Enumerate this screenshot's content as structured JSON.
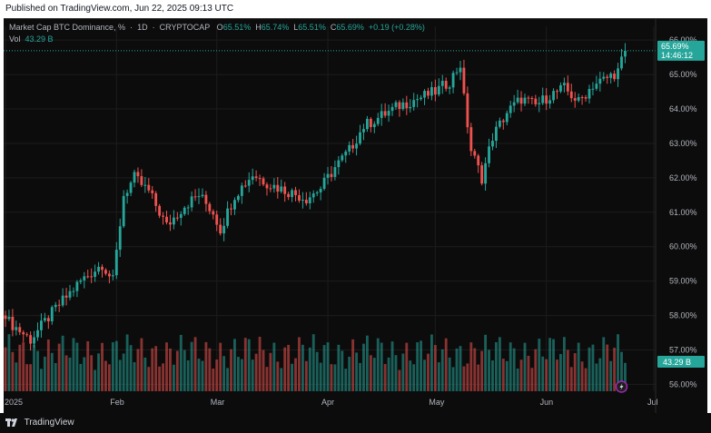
{
  "header": {
    "published_text": "Published on TradingView.com, Jun 22, 2025 09:13 UTC"
  },
  "legend": {
    "title": "Market Cap BTC Dominance, %",
    "interval": "1D",
    "source": "CRYPTOCAP",
    "open_label": "O",
    "open": "65.51%",
    "high_label": "H",
    "high": "65.74%",
    "low_label": "L",
    "low": "65.51%",
    "close_label": "C",
    "close": "65.69%",
    "change": "+0.19 (+0.28%)",
    "vol_label": "Vol",
    "vol": "43.29 B"
  },
  "price_badge": {
    "value": "65.69%",
    "countdown": "14:46:12",
    "color": "#26a69a"
  },
  "volume_badge": {
    "value": "43.29 B",
    "color": "#26a69a"
  },
  "footer": {
    "brand": "TradingView",
    "logo_icon": "tradingview-logo-icon"
  },
  "colors": {
    "up": "#26a69a",
    "down": "#ef5350",
    "background": "#0c0c0c",
    "grid": "#1c1c1c"
  },
  "chart_data": {
    "type": "candlestick",
    "title": "Market Cap BTC Dominance, % · 1D · CRYPTOCAP",
    "y_axis": {
      "ticks": [
        "66.00%",
        "65.00%",
        "64.00%",
        "63.00%",
        "62.00%",
        "61.00%",
        "60.00%",
        "59.00%",
        "58.00%",
        "57.00%",
        "56.00%"
      ],
      "range": [
        55.8,
        66.4
      ],
      "position": "right"
    },
    "x_axis": {
      "ticks": [
        {
          "label": "2025",
          "day": 0
        },
        {
          "label": "Feb",
          "day": 31
        },
        {
          "label": "Mar",
          "day": 59
        },
        {
          "label": "Apr",
          "day": 90
        },
        {
          "label": "May",
          "day": 120
        },
        {
          "label": "Jun",
          "day": 151
        },
        {
          "label": "Jul",
          "day": 181
        }
      ],
      "day_range": [
        0,
        181
      ]
    },
    "volume_range_b": [
      0,
      120
    ],
    "last_close_line": 65.69,
    "close_estimates": [
      [
        0,
        57.9
      ],
      [
        7,
        57.3
      ],
      [
        14,
        58.2
      ],
      [
        21,
        59.0
      ],
      [
        27,
        59.5
      ],
      [
        30,
        59.0
      ],
      [
        33,
        61.5
      ],
      [
        36,
        62.0
      ],
      [
        40,
        61.6
      ],
      [
        45,
        60.6
      ],
      [
        50,
        61.2
      ],
      [
        54,
        61.5
      ],
      [
        58,
        61.0
      ],
      [
        60,
        60.5
      ],
      [
        64,
        61.5
      ],
      [
        69,
        62.1
      ],
      [
        74,
        61.8
      ],
      [
        79,
        61.6
      ],
      [
        84,
        61.4
      ],
      [
        88,
        61.7
      ],
      [
        92,
        62.3
      ],
      [
        96,
        62.8
      ],
      [
        100,
        63.5
      ],
      [
        105,
        63.8
      ],
      [
        110,
        64.1
      ],
      [
        115,
        64.3
      ],
      [
        120,
        64.5
      ],
      [
        124,
        64.8
      ],
      [
        127,
        65.3
      ],
      [
        128,
        64.3
      ],
      [
        130,
        62.8
      ],
      [
        133,
        62.0
      ],
      [
        136,
        63.2
      ],
      [
        140,
        63.9
      ],
      [
        144,
        64.3
      ],
      [
        148,
        64.1
      ],
      [
        152,
        64.4
      ],
      [
        156,
        64.6
      ],
      [
        160,
        64.2
      ],
      [
        164,
        64.7
      ],
      [
        168,
        64.9
      ],
      [
        171,
        65.1
      ],
      [
        173,
        65.69
      ]
    ]
  }
}
